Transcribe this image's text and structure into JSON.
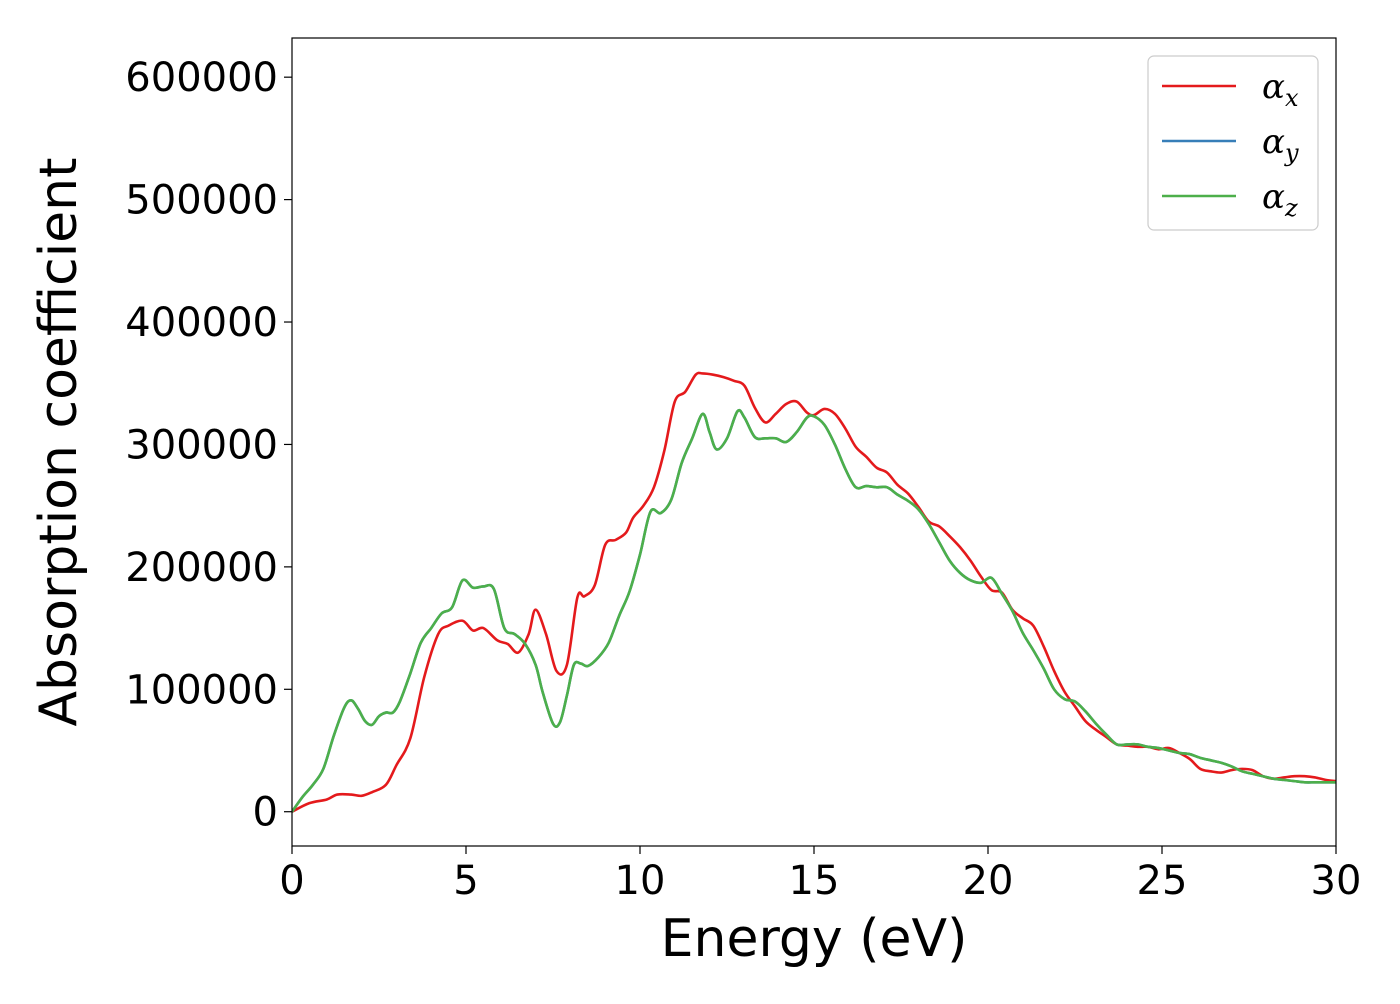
{
  "chart_data": {
    "type": "line",
    "title": "",
    "xlabel": "Energy (eV)",
    "ylabel": "Absorption coefficient",
    "xlim": [
      0,
      30
    ],
    "ylim": [
      -28000,
      632000
    ],
    "xticks": [
      0,
      5,
      10,
      15,
      20,
      25,
      30
    ],
    "yticks": [
      0,
      100000,
      200000,
      300000,
      400000,
      500000,
      600000
    ],
    "grid": false,
    "legend_position": "top-right",
    "series": [
      {
        "name": "αx",
        "legend_base": "α",
        "legend_sub": "x",
        "color": "#e41a1c",
        "x": [
          0,
          0.5,
          1.0,
          1.3,
          1.7,
          2.0,
          2.3,
          2.7,
          3.0,
          3.4,
          3.8,
          4.2,
          4.5,
          4.9,
          5.2,
          5.5,
          5.9,
          6.2,
          6.5,
          6.8,
          7.0,
          7.3,
          7.6,
          7.9,
          8.2,
          8.4,
          8.7,
          9.0,
          9.3,
          9.6,
          9.8,
          10.1,
          10.4,
          10.7,
          11.0,
          11.3,
          11.6,
          11.8,
          12.1,
          12.4,
          12.7,
          13.0,
          13.3,
          13.6,
          13.9,
          14.2,
          14.5,
          14.8,
          15.0,
          15.3,
          15.6,
          15.9,
          16.2,
          16.5,
          16.8,
          17.1,
          17.4,
          17.7,
          18.0,
          18.3,
          18.6,
          18.9,
          19.2,
          19.5,
          19.8,
          20.1,
          20.4,
          20.7,
          21.0,
          21.3,
          21.6,
          21.9,
          22.2,
          22.5,
          22.8,
          23.1,
          23.4,
          23.7,
          24.0,
          24.3,
          24.6,
          24.9,
          25.2,
          25.5,
          25.8,
          26.1,
          26.4,
          26.7,
          27.0,
          27.3,
          27.6,
          27.9,
          28.2,
          28.5,
          28.8,
          29.1,
          29.4,
          29.7,
          30.0
        ],
        "y": [
          0,
          7000,
          10000,
          14000,
          14000,
          13000,
          16000,
          22000,
          38000,
          60000,
          110000,
          145000,
          152000,
          156000,
          148000,
          150000,
          140000,
          137000,
          130000,
          145000,
          165000,
          145000,
          115000,
          120000,
          175000,
          176000,
          185000,
          218000,
          222000,
          228000,
          240000,
          250000,
          265000,
          295000,
          335000,
          343000,
          357000,
          358000,
          357000,
          355000,
          352000,
          348000,
          330000,
          318000,
          325000,
          333000,
          335000,
          326000,
          324000,
          329000,
          325000,
          313000,
          298000,
          290000,
          281000,
          277000,
          267000,
          260000,
          249000,
          237000,
          233000,
          225000,
          216000,
          205000,
          192000,
          181000,
          179000,
          165000,
          158000,
          152000,
          135000,
          115000,
          98000,
          86000,
          74000,
          67000,
          61000,
          55000,
          54000,
          53000,
          53000,
          51000,
          52000,
          48000,
          43000,
          35000,
          33000,
          32000,
          34000,
          35000,
          34000,
          29000,
          27000,
          28000,
          29000,
          29000,
          28000,
          26000,
          25000
        ]
      },
      {
        "name": "αy",
        "legend_base": "α",
        "legend_sub": "y",
        "color": "#377eb8",
        "x": [
          0,
          0.3,
          0.6,
          0.9,
          1.2,
          1.5,
          1.7,
          1.9,
          2.1,
          2.3,
          2.5,
          2.7,
          2.9,
          3.1,
          3.4,
          3.7,
          4.0,
          4.3,
          4.6,
          4.9,
          5.2,
          5.5,
          5.8,
          6.1,
          6.4,
          6.7,
          7.0,
          7.2,
          7.5,
          7.7,
          7.9,
          8.1,
          8.3,
          8.5,
          8.8,
          9.1,
          9.4,
          9.7,
          10.0,
          10.3,
          10.6,
          10.9,
          11.2,
          11.5,
          11.8,
          12.0,
          12.2,
          12.5,
          12.8,
          13.0,
          13.3,
          13.6,
          13.9,
          14.2,
          14.5,
          14.8,
          15.0,
          15.3,
          15.6,
          15.9,
          16.2,
          16.5,
          16.8,
          17.1,
          17.4,
          17.7,
          18.0,
          18.3,
          18.6,
          18.9,
          19.2,
          19.5,
          19.8,
          20.1,
          20.4,
          20.7,
          21.0,
          21.3,
          21.6,
          21.9,
          22.2,
          22.5,
          22.8,
          23.1,
          23.4,
          23.7,
          24.0,
          24.3,
          24.6,
          24.9,
          25.2,
          25.5,
          25.8,
          26.1,
          26.4,
          26.7,
          27.0,
          27.3,
          27.6,
          27.9,
          28.2,
          28.5,
          28.8,
          29.1,
          29.4,
          29.7,
          30.0
        ],
        "y": [
          0,
          12000,
          22000,
          35000,
          62000,
          85000,
          91000,
          84000,
          74000,
          71000,
          78000,
          81000,
          81000,
          90000,
          113000,
          138000,
          150000,
          162000,
          167000,
          189000,
          183000,
          184000,
          182000,
          150000,
          145000,
          137000,
          120000,
          98000,
          72000,
          73000,
          95000,
          120000,
          121000,
          119000,
          126000,
          138000,
          160000,
          180000,
          210000,
          245000,
          244000,
          255000,
          285000,
          305000,
          325000,
          310000,
          296000,
          305000,
          327000,
          322000,
          306000,
          305000,
          305000,
          302000,
          310000,
          322000,
          323000,
          316000,
          300000,
          280000,
          265000,
          266000,
          265000,
          265000,
          259000,
          254000,
          247000,
          235000,
          220000,
          205000,
          195000,
          189000,
          187000,
          191000,
          178000,
          164000,
          146000,
          132000,
          117000,
          100000,
          92000,
          90000,
          82000,
          72000,
          63000,
          55000,
          55000,
          55000,
          53000,
          52000,
          50000,
          48000,
          47000,
          44000,
          42000,
          40000,
          37000,
          33000,
          31000,
          29000,
          27000,
          26000,
          25000,
          24000,
          24000,
          24000,
          24000
        ]
      },
      {
        "name": "αz",
        "legend_base": "α",
        "legend_sub": "z",
        "color": "#4daf4a",
        "x": [
          0,
          0.3,
          0.6,
          0.9,
          1.2,
          1.5,
          1.7,
          1.9,
          2.1,
          2.3,
          2.5,
          2.7,
          2.9,
          3.1,
          3.4,
          3.7,
          4.0,
          4.3,
          4.6,
          4.9,
          5.2,
          5.5,
          5.8,
          6.1,
          6.4,
          6.7,
          7.0,
          7.2,
          7.5,
          7.7,
          7.9,
          8.1,
          8.3,
          8.5,
          8.8,
          9.1,
          9.4,
          9.7,
          10.0,
          10.3,
          10.6,
          10.9,
          11.2,
          11.5,
          11.8,
          12.0,
          12.2,
          12.5,
          12.8,
          13.0,
          13.3,
          13.6,
          13.9,
          14.2,
          14.5,
          14.8,
          15.0,
          15.3,
          15.6,
          15.9,
          16.2,
          16.5,
          16.8,
          17.1,
          17.4,
          17.7,
          18.0,
          18.3,
          18.6,
          18.9,
          19.2,
          19.5,
          19.8,
          20.1,
          20.4,
          20.7,
          21.0,
          21.3,
          21.6,
          21.9,
          22.2,
          22.5,
          22.8,
          23.1,
          23.4,
          23.7,
          24.0,
          24.3,
          24.6,
          24.9,
          25.2,
          25.5,
          25.8,
          26.1,
          26.4,
          26.7,
          27.0,
          27.3,
          27.6,
          27.9,
          28.2,
          28.5,
          28.8,
          29.1,
          29.4,
          29.7,
          30.0
        ],
        "y": [
          0,
          12000,
          22000,
          35000,
          62000,
          85000,
          91000,
          84000,
          74000,
          71000,
          78000,
          81000,
          81000,
          90000,
          113000,
          138000,
          150000,
          162000,
          167000,
          189000,
          183000,
          184000,
          182000,
          150000,
          145000,
          137000,
          120000,
          98000,
          72000,
          73000,
          95000,
          120000,
          121000,
          119000,
          126000,
          138000,
          160000,
          180000,
          210000,
          245000,
          244000,
          255000,
          285000,
          305000,
          325000,
          310000,
          296000,
          305000,
          327000,
          322000,
          306000,
          305000,
          305000,
          302000,
          310000,
          322000,
          323000,
          316000,
          300000,
          280000,
          265000,
          266000,
          265000,
          265000,
          259000,
          254000,
          247000,
          235000,
          220000,
          205000,
          195000,
          189000,
          187000,
          191000,
          178000,
          164000,
          146000,
          132000,
          117000,
          100000,
          92000,
          90000,
          82000,
          72000,
          63000,
          55000,
          55000,
          55000,
          53000,
          52000,
          50000,
          48000,
          47000,
          44000,
          42000,
          40000,
          37000,
          33000,
          31000,
          29000,
          27000,
          26000,
          25000,
          24000,
          24000,
          24000,
          24000
        ]
      }
    ]
  }
}
